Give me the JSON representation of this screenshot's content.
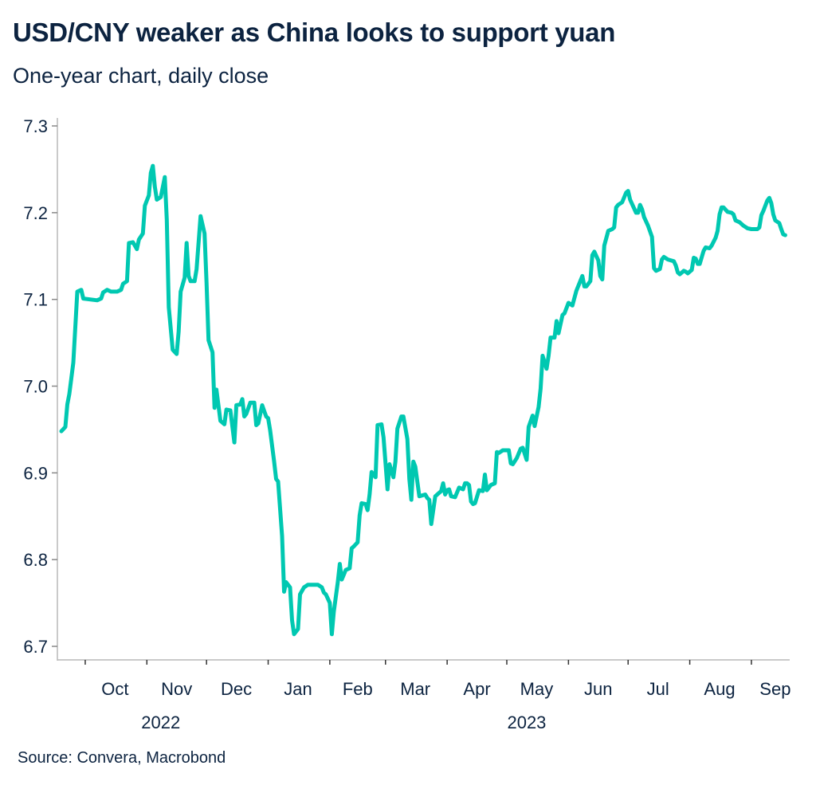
{
  "chart_data": {
    "type": "line",
    "title": "USD/CNY weaker as China looks to support yuan",
    "subtitle": "One-year chart, daily close",
    "source": "Source: Convera, Macrobond",
    "xlabel": "",
    "ylabel": "",
    "x_unit": "days since 2022-09-19",
    "ylim": [
      6.7,
      7.3
    ],
    "yticks": [
      6.7,
      6.8,
      6.9,
      7.0,
      7.1,
      7.2,
      7.3
    ],
    "ytick_labels": [
      "6.7",
      "6.8",
      "6.9",
      "7.0",
      "7.1",
      "7.2",
      "7.3"
    ],
    "xlim": [
      0,
      366
    ],
    "month_boundaries": [
      12,
      43,
      73,
      104,
      135,
      163,
      194,
      224,
      255,
      285,
      316,
      347
    ],
    "month_labels": [
      {
        "label": "Oct",
        "day": 27
      },
      {
        "label": "Nov",
        "day": 58
      },
      {
        "label": "Dec",
        "day": 88
      },
      {
        "label": "Jan",
        "day": 119
      },
      {
        "label": "Feb",
        "day": 149
      },
      {
        "label": "Mar",
        "day": 178
      },
      {
        "label": "Apr",
        "day": 209
      },
      {
        "label": "May",
        "day": 239
      },
      {
        "label": "Jun",
        "day": 270
      },
      {
        "label": "Jul",
        "day": 300
      },
      {
        "label": "Aug",
        "day": 331
      },
      {
        "label": "Sep",
        "day": 359
      }
    ],
    "year_labels": [
      {
        "label": "2022",
        "day": 50
      },
      {
        "label": "2023",
        "day": 234
      }
    ],
    "grid": false,
    "legend": "none",
    "colors": {
      "line": "#00c8b1",
      "axis": "#b8b8b8",
      "text": "#0c2340"
    },
    "series": [
      {
        "name": "USD/CNY",
        "points": [
          [
            0,
            6.948
          ],
          [
            2,
            6.953
          ],
          [
            3,
            6.979
          ],
          [
            4,
            6.991
          ],
          [
            6,
            7.027
          ],
          [
            8,
            7.109
          ],
          [
            10,
            7.111
          ],
          [
            11,
            7.101
          ],
          [
            18,
            7.099
          ],
          [
            20,
            7.101
          ],
          [
            21,
            7.108
          ],
          [
            23,
            7.111
          ],
          [
            25,
            7.109
          ],
          [
            28,
            7.109
          ],
          [
            30,
            7.111
          ],
          [
            31,
            7.118
          ],
          [
            33,
            7.121
          ],
          [
            34,
            7.165
          ],
          [
            36,
            7.166
          ],
          [
            38,
            7.158
          ],
          [
            39,
            7.169
          ],
          [
            41,
            7.176
          ],
          [
            42,
            7.208
          ],
          [
            44,
            7.22
          ],
          [
            45,
            7.246
          ],
          [
            46,
            7.254
          ],
          [
            47,
            7.23
          ],
          [
            48,
            7.215
          ],
          [
            50,
            7.218
          ],
          [
            52,
            7.241
          ],
          [
            53,
            7.192
          ],
          [
            54,
            7.091
          ],
          [
            56,
            7.042
          ],
          [
            58,
            7.037
          ],
          [
            59,
            7.063
          ],
          [
            60,
            7.109
          ],
          [
            62,
            7.125
          ],
          [
            63,
            7.165
          ],
          [
            64,
            7.127
          ],
          [
            65,
            7.121
          ],
          [
            67,
            7.121
          ],
          [
            68,
            7.135
          ],
          [
            70,
            7.196
          ],
          [
            72,
            7.176
          ],
          [
            73,
            7.119
          ],
          [
            74,
            7.053
          ],
          [
            76,
            7.039
          ],
          [
            77,
            6.975
          ],
          [
            78,
            6.996
          ],
          [
            80,
            6.96
          ],
          [
            82,
            6.956
          ],
          [
            83,
            6.973
          ],
          [
            85,
            6.972
          ],
          [
            87,
            6.935
          ],
          [
            88,
            6.978
          ],
          [
            90,
            6.979
          ],
          [
            91,
            6.985
          ],
          [
            92,
            6.965
          ],
          [
            93,
            6.968
          ],
          [
            95,
            6.981
          ],
          [
            97,
            6.981
          ],
          [
            98,
            6.955
          ],
          [
            99,
            6.957
          ],
          [
            101,
            6.978
          ],
          [
            103,
            6.965
          ],
          [
            104,
            6.963
          ],
          [
            105,
            6.949
          ],
          [
            107,
            6.913
          ],
          [
            108,
            6.893
          ],
          [
            109,
            6.89
          ],
          [
            111,
            6.827
          ],
          [
            112,
            6.763
          ],
          [
            113,
            6.774
          ],
          [
            115,
            6.768
          ],
          [
            116,
            6.73
          ],
          [
            117,
            6.714
          ],
          [
            119,
            6.72
          ],
          [
            120,
            6.76
          ],
          [
            122,
            6.768
          ],
          [
            124,
            6.771
          ],
          [
            129,
            6.771
          ],
          [
            131,
            6.768
          ],
          [
            132,
            6.762
          ],
          [
            133,
            6.76
          ],
          [
            135,
            6.75
          ],
          [
            136,
            6.714
          ],
          [
            137,
            6.74
          ],
          [
            139,
            6.774
          ],
          [
            140,
            6.795
          ],
          [
            141,
            6.777
          ],
          [
            143,
            6.788
          ],
          [
            145,
            6.79
          ],
          [
            146,
            6.813
          ],
          [
            147,
            6.815
          ],
          [
            149,
            6.82
          ],
          [
            150,
            6.851
          ],
          [
            151,
            6.865
          ],
          [
            153,
            6.864
          ],
          [
            154,
            6.857
          ],
          [
            155,
            6.875
          ],
          [
            156,
            6.901
          ],
          [
            158,
            6.895
          ],
          [
            159,
            6.955
          ],
          [
            161,
            6.956
          ],
          [
            162,
            6.941
          ],
          [
            164,
            6.881
          ],
          [
            165,
            6.91
          ],
          [
            167,
            6.895
          ],
          [
            168,
            6.913
          ],
          [
            169,
            6.951
          ],
          [
            171,
            6.965
          ],
          [
            172,
            6.965
          ],
          [
            174,
            6.939
          ],
          [
            175,
            6.893
          ],
          [
            176,
            6.869
          ],
          [
            177,
            6.913
          ],
          [
            178,
            6.907
          ],
          [
            180,
            6.873
          ],
          [
            183,
            6.875
          ],
          [
            184,
            6.871
          ],
          [
            185,
            6.869
          ],
          [
            186,
            6.841
          ],
          [
            188,
            6.873
          ],
          [
            190,
            6.877
          ],
          [
            191,
            6.879
          ],
          [
            192,
            6.888
          ],
          [
            193,
            6.875
          ],
          [
            194,
            6.88
          ],
          [
            195,
            6.881
          ],
          [
            196,
            6.873
          ],
          [
            198,
            6.872
          ],
          [
            200,
            6.883
          ],
          [
            202,
            6.881
          ],
          [
            203,
            6.888
          ],
          [
            204,
            6.888
          ],
          [
            205,
            6.886
          ],
          [
            206,
            6.867
          ],
          [
            207,
            6.864
          ],
          [
            208,
            6.865
          ],
          [
            210,
            6.88
          ],
          [
            212,
            6.879
          ],
          [
            213,
            6.898
          ],
          [
            214,
            6.88
          ],
          [
            216,
            6.886
          ],
          [
            218,
            6.888
          ],
          [
            219,
            6.924
          ],
          [
            220,
            6.923
          ],
          [
            222,
            6.926
          ],
          [
            225,
            6.926
          ],
          [
            226,
            6.911
          ],
          [
            227,
            6.91
          ],
          [
            229,
            6.917
          ],
          [
            231,
            6.928
          ],
          [
            232,
            6.929
          ],
          [
            234,
            6.915
          ],
          [
            235,
            6.953
          ],
          [
            237,
            6.966
          ],
          [
            238,
            6.954
          ],
          [
            240,
            6.976
          ],
          [
            241,
            6.997
          ],
          [
            242,
            7.035
          ],
          [
            244,
            7.02
          ],
          [
            245,
            7.035
          ],
          [
            246,
            7.056
          ],
          [
            248,
            7.056
          ],
          [
            249,
            7.075
          ],
          [
            250,
            7.061
          ],
          [
            252,
            7.082
          ],
          [
            253,
            7.084
          ],
          [
            255,
            7.096
          ],
          [
            257,
            7.093
          ],
          [
            259,
            7.11
          ],
          [
            262,
            7.127
          ],
          [
            263,
            7.115
          ],
          [
            264,
            7.115
          ],
          [
            266,
            7.121
          ],
          [
            267,
            7.151
          ],
          [
            268,
            7.155
          ],
          [
            270,
            7.145
          ],
          [
            271,
            7.127
          ],
          [
            272,
            7.123
          ],
          [
            273,
            7.162
          ],
          [
            275,
            7.179
          ],
          [
            277,
            7.181
          ],
          [
            278,
            7.183
          ],
          [
            279,
            7.206
          ],
          [
            280,
            7.209
          ],
          [
            282,
            7.212
          ],
          [
            284,
            7.223
          ],
          [
            285,
            7.225
          ],
          [
            286,
            7.215
          ],
          [
            289,
            7.2
          ],
          [
            290,
            7.2
          ],
          [
            291,
            7.209
          ],
          [
            292,
            7.204
          ],
          [
            293,
            7.195
          ],
          [
            295,
            7.185
          ],
          [
            297,
            7.172
          ],
          [
            298,
            7.136
          ],
          [
            299,
            7.133
          ],
          [
            301,
            7.135
          ],
          [
            302,
            7.146
          ],
          [
            303,
            7.149
          ],
          [
            305,
            7.146
          ],
          [
            308,
            7.144
          ],
          [
            309,
            7.139
          ],
          [
            310,
            7.131
          ],
          [
            311,
            7.129
          ],
          [
            313,
            7.133
          ],
          [
            314,
            7.132
          ],
          [
            315,
            7.13
          ],
          [
            317,
            7.134
          ],
          [
            318,
            7.148
          ],
          [
            319,
            7.147
          ],
          [
            320,
            7.141
          ],
          [
            321,
            7.141
          ],
          [
            323,
            7.156
          ],
          [
            324,
            7.16
          ],
          [
            326,
            7.159
          ],
          [
            327,
            7.162
          ],
          [
            329,
            7.171
          ],
          [
            330,
            7.179
          ],
          [
            331,
            7.198
          ],
          [
            332,
            7.206
          ],
          [
            333,
            7.206
          ],
          [
            335,
            7.201
          ],
          [
            337,
            7.2
          ],
          [
            338,
            7.198
          ],
          [
            339,
            7.191
          ],
          [
            341,
            7.189
          ],
          [
            343,
            7.185
          ],
          [
            345,
            7.182
          ],
          [
            347,
            7.181
          ],
          [
            350,
            7.181
          ],
          [
            351,
            7.183
          ],
          [
            352,
            7.197
          ],
          [
            353,
            7.202
          ],
          [
            355,
            7.214
          ],
          [
            356,
            7.217
          ],
          [
            357,
            7.211
          ],
          [
            358,
            7.198
          ],
          [
            359,
            7.191
          ],
          [
            361,
            7.188
          ],
          [
            362,
            7.181
          ],
          [
            363,
            7.175
          ],
          [
            364,
            7.174
          ]
        ]
      }
    ]
  }
}
